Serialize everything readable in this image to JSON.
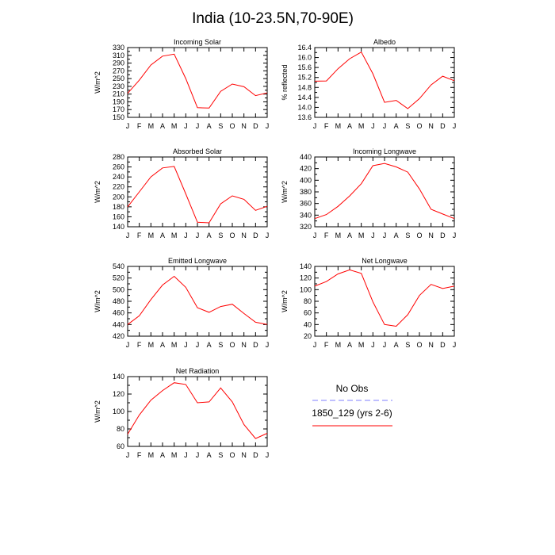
{
  "title": "India (10-23.5N,70-90E)",
  "chart_data": [
    {
      "type": "line",
      "title": "Incoming Solar",
      "ylabel": "W/m^2",
      "ylim": [
        150,
        330
      ],
      "yticks": [
        "150",
        "170",
        "190",
        "210",
        "230",
        "250",
        "270",
        "290",
        "310",
        "330"
      ],
      "categories": [
        "J",
        "F",
        "M",
        "A",
        "M",
        "J",
        "J",
        "A",
        "S",
        "O",
        "N",
        "D",
        "J"
      ],
      "series": [
        {
          "name": "1850_129 (yrs 2-6)",
          "values": [
            212,
            246,
            285,
            308,
            313,
            250,
            175,
            174,
            217,
            236,
            229,
            206,
            213
          ]
        }
      ]
    },
    {
      "type": "line",
      "title": "Albedo",
      "ylabel": "% reflected",
      "ylim": [
        13.6,
        16.4
      ],
      "yticks": [
        "13.6",
        "14.0",
        "14.4",
        "14.8",
        "15.2",
        "15.6",
        "16.0",
        "16.4"
      ],
      "categories": [
        "J",
        "F",
        "M",
        "A",
        "M",
        "J",
        "J",
        "A",
        "S",
        "O",
        "N",
        "D",
        "J"
      ],
      "series": [
        {
          "name": "1850_129 (yrs 2-6)",
          "values": [
            15.05,
            15.06,
            15.55,
            15.95,
            16.22,
            15.35,
            14.2,
            14.28,
            13.95,
            14.35,
            14.9,
            15.25,
            15.07
          ]
        }
      ]
    },
    {
      "type": "line",
      "title": "Absorbed Solar",
      "ylabel": "W/m^2",
      "ylim": [
        140,
        280
      ],
      "yticks": [
        "140",
        "160",
        "180",
        "200",
        "220",
        "240",
        "260",
        "280"
      ],
      "categories": [
        "J",
        "F",
        "M",
        "A",
        "M",
        "J",
        "J",
        "A",
        "S",
        "O",
        "N",
        "D",
        "J"
      ],
      "series": [
        {
          "name": "1850_129 (yrs 2-6)",
          "values": [
            180,
            210,
            240,
            258,
            261,
            206,
            149,
            148,
            186,
            202,
            195,
            173,
            181
          ]
        }
      ]
    },
    {
      "type": "line",
      "title": "Incoming Longwave",
      "ylabel": "W/m^2",
      "ylim": [
        320,
        440
      ],
      "yticks": [
        "320",
        "340",
        "360",
        "380",
        "400",
        "420",
        "440"
      ],
      "categories": [
        "J",
        "F",
        "M",
        "A",
        "M",
        "J",
        "J",
        "A",
        "S",
        "O",
        "N",
        "D",
        "J"
      ],
      "series": [
        {
          "name": "1850_129 (yrs 2-6)",
          "values": [
            334,
            341,
            355,
            373,
            394,
            425,
            429,
            423,
            414,
            385,
            350,
            342,
            334
          ]
        }
      ]
    },
    {
      "type": "line",
      "title": "Emitted Longwave",
      "ylabel": "W/m^2",
      "ylim": [
        420,
        540
      ],
      "yticks": [
        "420",
        "440",
        "460",
        "480",
        "500",
        "520",
        "540"
      ],
      "categories": [
        "J",
        "F",
        "M",
        "A",
        "M",
        "J",
        "J",
        "A",
        "S",
        "O",
        "N",
        "D",
        "J"
      ],
      "series": [
        {
          "name": "1850_129 (yrs 2-6)",
          "values": [
            440,
            455,
            483,
            508,
            523,
            504,
            469,
            461,
            471,
            475,
            459,
            444,
            440
          ]
        }
      ]
    },
    {
      "type": "line",
      "title": "Net Longwave",
      "ylabel": "W/m^2",
      "ylim": [
        20,
        140
      ],
      "yticks": [
        "20",
        "40",
        "60",
        "80",
        "100",
        "120",
        "140"
      ],
      "categories": [
        "J",
        "F",
        "M",
        "A",
        "M",
        "J",
        "J",
        "A",
        "S",
        "O",
        "N",
        "D",
        "J"
      ],
      "series": [
        {
          "name": "1850_129 (yrs 2-6)",
          "values": [
            106,
            114,
            127,
            134,
            128,
            79,
            40,
            37,
            57,
            90,
            109,
            102,
            106
          ]
        }
      ]
    },
    {
      "type": "line",
      "title": "Net Radiation",
      "ylabel": "W/m^2",
      "ylim": [
        60,
        140
      ],
      "yticks": [
        "60",
        "80",
        "100",
        "120",
        "140"
      ],
      "categories": [
        "J",
        "F",
        "M",
        "A",
        "M",
        "J",
        "J",
        "A",
        "S",
        "O",
        "N",
        "D",
        "J"
      ],
      "series": [
        {
          "name": "1850_129 (yrs 2-6)",
          "values": [
            74,
            96,
            113,
            124,
            133,
            131,
            110,
            111,
            127,
            111,
            85,
            69,
            75
          ]
        }
      ]
    }
  ],
  "legend": {
    "entries": [
      {
        "label": "No Obs",
        "color": "#7f7fff",
        "dash": true
      },
      {
        "label": "1850_129 (yrs 2-6)",
        "color": "#ff0000",
        "dash": false
      }
    ]
  },
  "colors": {
    "line": "#ff0000",
    "obs": "#7f7fff",
    "axis": "#000000"
  }
}
